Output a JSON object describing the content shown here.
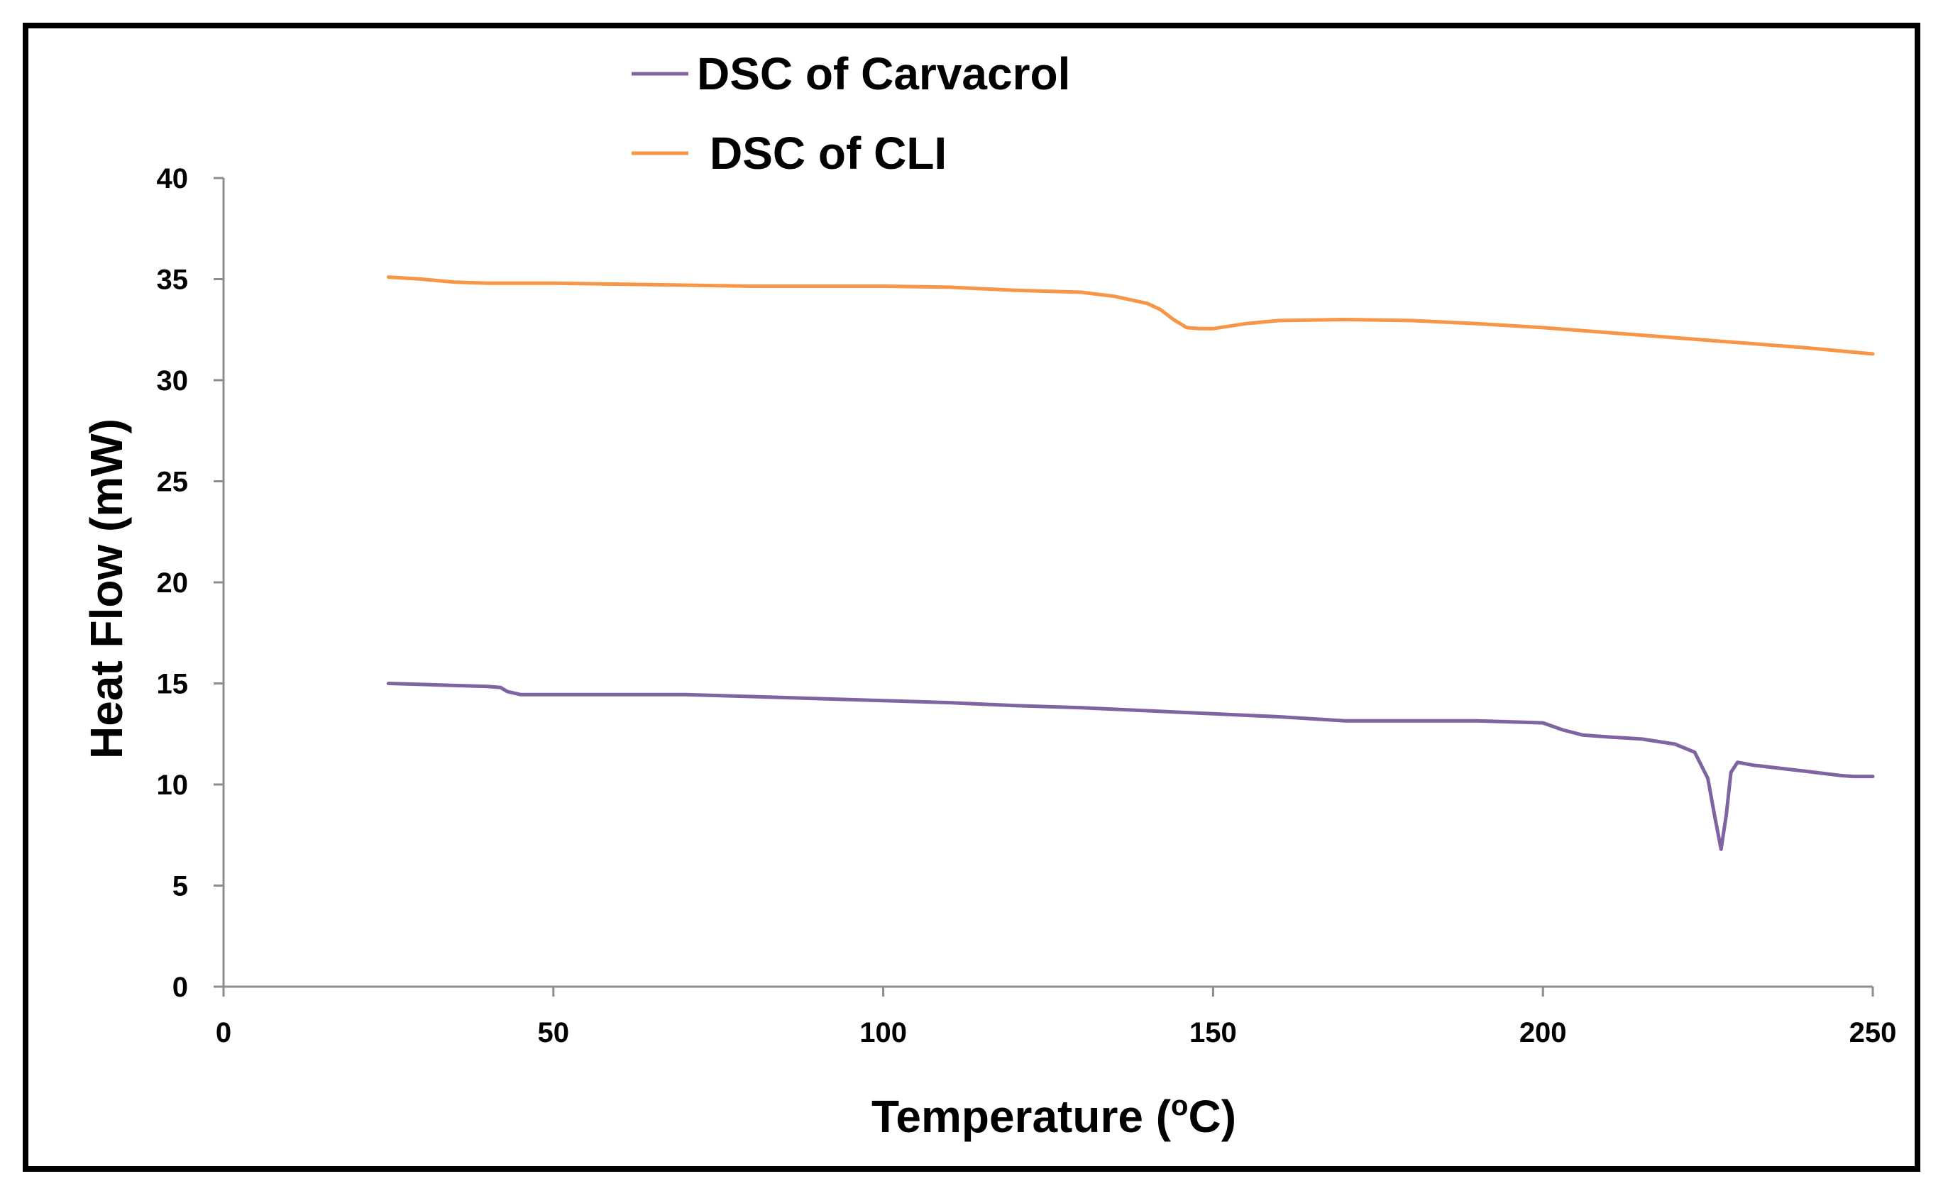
{
  "chart_data": {
    "type": "line",
    "xlabel": "Temperature",
    "xlabel_unit_open": "(",
    "xlabel_unit_sup": "o",
    "xlabel_unit_close": "C)",
    "ylabel": "Heat Flow (mW)",
    "xlim": [
      0,
      250
    ],
    "ylim": [
      0,
      40
    ],
    "x_ticks": [
      0,
      50,
      100,
      150,
      200,
      250
    ],
    "y_ticks": [
      0,
      5,
      10,
      15,
      20,
      25,
      30,
      35,
      40
    ],
    "grid": false,
    "legend_position": "top-center",
    "series": [
      {
        "name": "DSC of Carvacrol",
        "color": "#8064A2",
        "points": [
          [
            25,
            15.0
          ],
          [
            30,
            14.95
          ],
          [
            35,
            14.9
          ],
          [
            40,
            14.85
          ],
          [
            42,
            14.8
          ],
          [
            43,
            14.6
          ],
          [
            45,
            14.45
          ],
          [
            50,
            14.45
          ],
          [
            60,
            14.45
          ],
          [
            70,
            14.45
          ],
          [
            80,
            14.35
          ],
          [
            90,
            14.25
          ],
          [
            100,
            14.15
          ],
          [
            110,
            14.05
          ],
          [
            120,
            13.9
          ],
          [
            130,
            13.8
          ],
          [
            140,
            13.65
          ],
          [
            150,
            13.5
          ],
          [
            160,
            13.35
          ],
          [
            170,
            13.15
          ],
          [
            180,
            13.15
          ],
          [
            190,
            13.15
          ],
          [
            200,
            13.05
          ],
          [
            203,
            12.7
          ],
          [
            206,
            12.45
          ],
          [
            210,
            12.35
          ],
          [
            215,
            12.25
          ],
          [
            220,
            12.0
          ],
          [
            223,
            11.6
          ],
          [
            225,
            10.3
          ],
          [
            226,
            8.5
          ],
          [
            227,
            6.8
          ],
          [
            227.8,
            8.5
          ],
          [
            228.5,
            10.6
          ],
          [
            229.5,
            11.1
          ],
          [
            232,
            10.95
          ],
          [
            240,
            10.65
          ],
          [
            245,
            10.45
          ],
          [
            247,
            10.4
          ],
          [
            250,
            10.4
          ]
        ]
      },
      {
        "name": "DSC of CLI",
        "color": "#F79646",
        "points": [
          [
            25,
            35.1
          ],
          [
            30,
            35.0
          ],
          [
            35,
            34.85
          ],
          [
            40,
            34.8
          ],
          [
            50,
            34.8
          ],
          [
            60,
            34.75
          ],
          [
            70,
            34.7
          ],
          [
            80,
            34.65
          ],
          [
            90,
            34.65
          ],
          [
            100,
            34.65
          ],
          [
            110,
            34.6
          ],
          [
            120,
            34.45
          ],
          [
            130,
            34.35
          ],
          [
            135,
            34.15
          ],
          [
            140,
            33.8
          ],
          [
            142,
            33.5
          ],
          [
            144,
            33.0
          ],
          [
            146,
            32.6
          ],
          [
            148,
            32.55
          ],
          [
            150,
            32.55
          ],
          [
            155,
            32.8
          ],
          [
            160,
            32.95
          ],
          [
            170,
            33.0
          ],
          [
            180,
            32.95
          ],
          [
            190,
            32.8
          ],
          [
            200,
            32.6
          ],
          [
            210,
            32.35
          ],
          [
            220,
            32.1
          ],
          [
            230,
            31.85
          ],
          [
            240,
            31.6
          ],
          [
            250,
            31.3
          ]
        ]
      }
    ]
  }
}
